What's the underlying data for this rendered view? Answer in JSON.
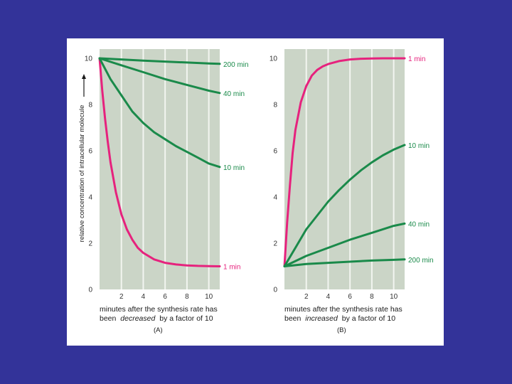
{
  "colors": {
    "slide_background": "#333399",
    "panel_background": "#ffffff",
    "plot_background": "#cbd5c7",
    "gridline": "#f2f5f0",
    "magenta": "#e6227d",
    "green": "#1a8a4a"
  },
  "y_axis_label": "relative concentration of intracellular molecule",
  "chart_data": [
    {
      "type": "line",
      "panel_tag": "(A)",
      "caption": {
        "line1": "minutes after the synthesis rate has",
        "line2_prefix": "been",
        "line2_emphasis": "decreased",
        "line2_suffix": "by a factor of 10"
      },
      "xlim": [
        0,
        11
      ],
      "ylim": [
        0,
        10.4
      ],
      "x_ticks": [
        "2",
        "4",
        "6",
        "8",
        "10"
      ],
      "y_ticks": [
        "0",
        "2",
        "4",
        "6",
        "8",
        "10"
      ],
      "grid": true,
      "series": [
        {
          "name": "1 min",
          "color": "magenta",
          "x": [
            0,
            0.25,
            0.5,
            0.75,
            1,
            1.5,
            2,
            2.5,
            3,
            3.5,
            4,
            5,
            6,
            7,
            8,
            9,
            10,
            11
          ],
          "y": [
            10,
            8.6,
            7.4,
            6.4,
            5.5,
            4.2,
            3.25,
            2.6,
            2.15,
            1.8,
            1.58,
            1.3,
            1.15,
            1.08,
            1.04,
            1.02,
            1.01,
            1.0
          ]
        },
        {
          "name": "10 min",
          "color": "green",
          "x": [
            0,
            1,
            2,
            3,
            4,
            5,
            6,
            7,
            8,
            9,
            10,
            11
          ],
          "y": [
            10,
            9.1,
            8.4,
            7.7,
            7.2,
            6.8,
            6.5,
            6.2,
            5.95,
            5.7,
            5.45,
            5.3
          ]
        },
        {
          "name": "40 min",
          "color": "green",
          "x": [
            0,
            2,
            4,
            6,
            8,
            10,
            11
          ],
          "y": [
            10,
            9.7,
            9.4,
            9.1,
            8.85,
            8.6,
            8.5
          ]
        },
        {
          "name": "200 min",
          "color": "green",
          "x": [
            0,
            2,
            4,
            6,
            8,
            10,
            11
          ],
          "y": [
            10,
            9.95,
            9.9,
            9.86,
            9.82,
            9.78,
            9.76
          ]
        }
      ]
    },
    {
      "type": "line",
      "panel_tag": "(B)",
      "caption": {
        "line1": "minutes after the synthesis rate has",
        "line2_prefix": "been",
        "line2_emphasis": "increased",
        "line2_suffix": "by a factor of 10"
      },
      "xlim": [
        0,
        11
      ],
      "ylim": [
        0,
        10.4
      ],
      "x_ticks": [
        "2",
        "4",
        "6",
        "8",
        "10"
      ],
      "y_ticks": [
        "0",
        "2",
        "4",
        "6",
        "8",
        "10"
      ],
      "grid": true,
      "series": [
        {
          "name": "1 min",
          "color": "magenta",
          "x": [
            0,
            0.25,
            0.5,
            0.75,
            1,
            1.5,
            2,
            2.5,
            3,
            3.5,
            4,
            5,
            6,
            7,
            8,
            9,
            10,
            11
          ],
          "y": [
            1,
            2.9,
            4.5,
            5.9,
            6.9,
            8.1,
            8.8,
            9.25,
            9.5,
            9.65,
            9.75,
            9.88,
            9.95,
            9.98,
            9.99,
            10,
            10,
            10
          ]
        },
        {
          "name": "10 min",
          "color": "green",
          "x": [
            0,
            1,
            2,
            3,
            4,
            5,
            6,
            7,
            8,
            9,
            10,
            11
          ],
          "y": [
            1,
            1.8,
            2.6,
            3.2,
            3.8,
            4.3,
            4.75,
            5.15,
            5.5,
            5.8,
            6.05,
            6.25
          ]
        },
        {
          "name": "40 min",
          "color": "green",
          "x": [
            0,
            2,
            4,
            6,
            8,
            10,
            11
          ],
          "y": [
            1,
            1.45,
            1.8,
            2.15,
            2.45,
            2.75,
            2.85
          ]
        },
        {
          "name": "200 min",
          "color": "green",
          "x": [
            0,
            2,
            4,
            6,
            8,
            10,
            11
          ],
          "y": [
            1,
            1.1,
            1.15,
            1.2,
            1.25,
            1.28,
            1.3
          ]
        }
      ]
    }
  ]
}
